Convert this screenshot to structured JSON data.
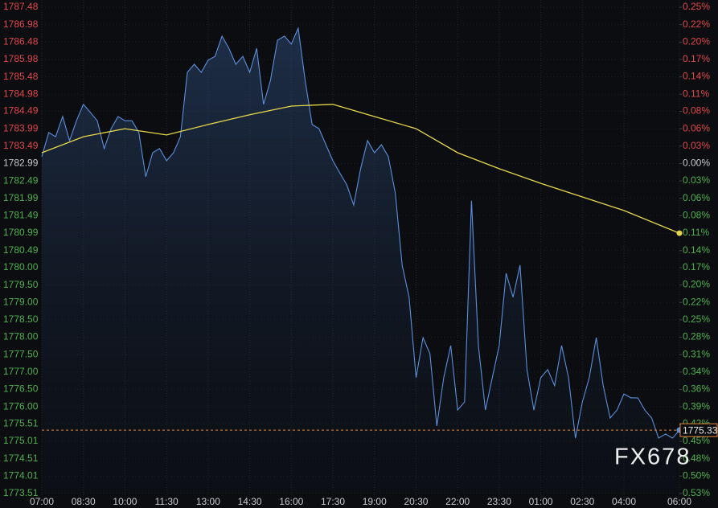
{
  "chart_data": {
    "type": "line",
    "watermark": "FX678",
    "x": [
      "07:00",
      "07:15",
      "07:30",
      "07:45",
      "08:00",
      "08:15",
      "08:30",
      "08:45",
      "09:00",
      "09:15",
      "09:30",
      "09:45",
      "10:00",
      "10:15",
      "10:30",
      "10:45",
      "11:00",
      "11:15",
      "11:30",
      "11:45",
      "12:00",
      "12:15",
      "12:30",
      "12:45",
      "13:00",
      "13:15",
      "13:30",
      "13:45",
      "14:00",
      "14:15",
      "14:30",
      "14:45",
      "15:00",
      "15:15",
      "15:30",
      "15:45",
      "16:00",
      "16:15",
      "16:30",
      "16:45",
      "17:00",
      "17:15",
      "17:30",
      "17:45",
      "18:00",
      "18:15",
      "18:30",
      "18:45",
      "19:00",
      "19:15",
      "19:30",
      "19:45",
      "20:00",
      "20:15",
      "20:30",
      "20:45",
      "21:00",
      "21:15",
      "21:30",
      "21:45",
      "22:00",
      "22:15",
      "22:30",
      "22:45",
      "23:00",
      "23:15",
      "23:30",
      "23:45",
      "00:00",
      "00:15",
      "00:30",
      "00:45",
      "01:00",
      "01:15",
      "01:30",
      "01:45",
      "02:00",
      "02:15",
      "02:30",
      "02:45",
      "03:00",
      "03:15",
      "03:30",
      "03:45",
      "04:00",
      "04:15",
      "04:30",
      "04:45",
      "05:00",
      "05:15",
      "05:30",
      "05:45",
      "06:00"
    ],
    "series": [
      {
        "name": "price",
        "color": "#5b8fdc",
        "values": [
          1783.19,
          1783.88,
          1783.76,
          1784.34,
          1783.65,
          1784.22,
          1784.69,
          1784.46,
          1784.22,
          1783.42,
          1783.99,
          1784.34,
          1784.22,
          1784.22,
          1783.88,
          1782.61,
          1783.3,
          1783.42,
          1783.07,
          1783.3,
          1783.76,
          1785.61,
          1785.84,
          1785.61,
          1785.96,
          1786.07,
          1786.65,
          1786.3,
          1785.84,
          1786.07,
          1785.61,
          1786.3,
          1784.69,
          1785.38,
          1786.53,
          1786.65,
          1786.42,
          1786.88,
          1785.38,
          1784.11,
          1783.99,
          1783.53,
          1783.07,
          1782.72,
          1782.38,
          1781.8,
          1782.84,
          1783.65,
          1783.3,
          1783.53,
          1783.19,
          1782.15,
          1780.07,
          1779.15,
          1776.84,
          1777.99,
          1777.53,
          1775.45,
          1776.84,
          1777.76,
          1775.91,
          1776.14,
          1781.92,
          1777.76,
          1775.91,
          1776.84,
          1777.76,
          1779.84,
          1779.15,
          1780.07,
          1777.07,
          1775.91,
          1776.84,
          1777.07,
          1776.61,
          1777.76,
          1776.84,
          1775.1,
          1776.14,
          1776.84,
          1777.99,
          1776.61,
          1775.68,
          1775.91,
          1776.37,
          1776.26,
          1776.26,
          1775.91,
          1775.68,
          1775.1,
          1775.22,
          1775.1,
          1775.33
        ]
      },
      {
        "name": "average",
        "color": "#e6d84a",
        "x": [
          "07:00",
          "08:30",
          "10:00",
          "11:30",
          "13:00",
          "14:30",
          "16:00",
          "17:30",
          "19:00",
          "20:30",
          "22:00",
          "23:30",
          "01:00",
          "02:30",
          "04:00",
          "06:00"
        ],
        "values": [
          1783.3,
          1783.76,
          1783.99,
          1783.81,
          1784.11,
          1784.39,
          1784.64,
          1784.69,
          1784.34,
          1783.99,
          1783.3,
          1782.84,
          1782.42,
          1782.03,
          1781.64,
          1780.99
        ]
      }
    ],
    "last_price": 1775.33,
    "xticks": [
      "07:00",
      "08:30",
      "10:00",
      "11:30",
      "13:00",
      "14:30",
      "16:00",
      "17:30",
      "19:00",
      "20:30",
      "22:00",
      "23:30",
      "01:00",
      "02:30",
      "04:00",
      "06:00"
    ],
    "ylim": [
      1773.51,
      1787.48
    ],
    "yticks": [
      1787.48,
      1786.98,
      1786.48,
      1785.98,
      1785.48,
      1784.98,
      1784.49,
      1783.99,
      1783.49,
      1782.99,
      1782.49,
      1781.99,
      1781.49,
      1780.99,
      1780.49,
      {
        "value": 1780.0,
        "label": "1780.00"
      },
      {
        "value": 1779.5,
        "label": "1779.50"
      },
      {
        "value": 1779.0,
        "label": "1779.00"
      },
      {
        "value": 1778.5,
        "label": "1778.50"
      },
      {
        "value": 1778.0,
        "label": "1778.00"
      },
      {
        "value": 1777.5,
        "label": "1777.50"
      },
      {
        "value": 1777.0,
        "label": "1777.00"
      },
      {
        "value": 1776.5,
        "label": "1776.50"
      },
      {
        "value": 1776.0,
        "label": "1776.00"
      },
      1775.51,
      1775.01,
      1774.51,
      1774.01,
      1773.51
    ],
    "y2lim": [
      -0.5317,
      0.2518
    ],
    "y2ticks": [
      {
        "value": 0.2518,
        "label": "0.25%"
      },
      {
        "value": 0.2238,
        "label": "0.22%"
      },
      {
        "value": 0.1957,
        "label": "0.20%"
      },
      {
        "value": 0.1677,
        "label": "0.17%"
      },
      {
        "value": 0.1397,
        "label": "0.14%"
      },
      {
        "value": 0.1116,
        "label": "0.11%"
      },
      {
        "value": 0.0841,
        "label": "0.08%"
      },
      {
        "value": 0.0561,
        "label": "0.06%"
      },
      {
        "value": 0.028,
        "label": "0.03%"
      },
      {
        "value": 0,
        "label": "0.00%"
      },
      {
        "value": -0.028,
        "label": "0.03%"
      },
      {
        "value": -0.0561,
        "label": "0.06%"
      },
      {
        "value": -0.0841,
        "label": "0.08%"
      },
      {
        "value": -0.1122,
        "label": "0.11%"
      },
      {
        "value": -0.1402,
        "label": "0.14%"
      },
      {
        "value": -0.1677,
        "label": "0.17%"
      },
      {
        "value": -0.1957,
        "label": "0.20%"
      },
      {
        "value": -0.2238,
        "label": "0.22%"
      },
      {
        "value": -0.2518,
        "label": "0.25%"
      },
      {
        "value": -0.2799,
        "label": "0.28%"
      },
      {
        "value": -0.3079,
        "label": "0.31%"
      },
      {
        "value": -0.336,
        "label": "0.34%"
      },
      {
        "value": -0.364,
        "label": "0.36%"
      },
      {
        "value": -0.392,
        "label": "0.39%"
      },
      {
        "value": -0.4195,
        "label": "0.42%"
      },
      {
        "value": -0.4476,
        "label": "0.45%"
      },
      {
        "value": -0.4756,
        "label": "0.48%"
      },
      {
        "value": -0.5036,
        "label": "0.50%"
      },
      {
        "value": -0.5317,
        "label": "0.53%"
      }
    ],
    "grid": true,
    "up_color": "#e0474c",
    "down_color": "#4fb04f",
    "flat_color": "#c8c8c8",
    "last_price_color": "#e8883a"
  }
}
